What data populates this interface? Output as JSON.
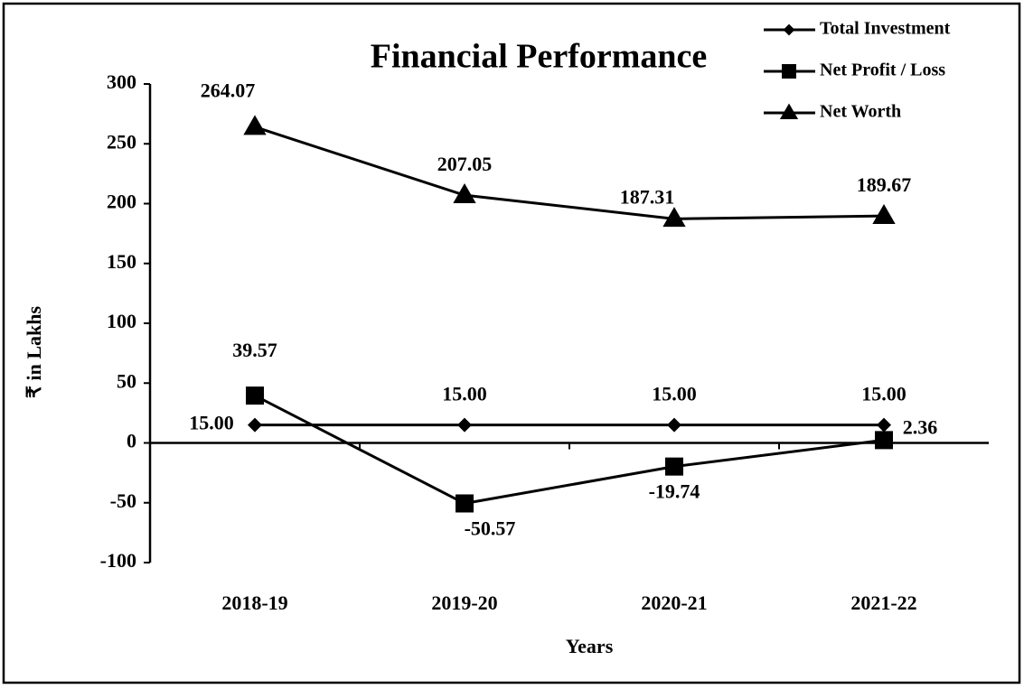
{
  "chart_data": {
    "type": "line",
    "title": "Financial Performance",
    "xlabel": "Years",
    "ylabel": "₹ in Lakhs",
    "categories": [
      "2018-19",
      "2019-20",
      "2020-21",
      "2021-22"
    ],
    "series": [
      {
        "name": "Total Investment",
        "color": "#000000",
        "marker": "diamond",
        "values": [
          15,
          15,
          15,
          15
        ],
        "value_labels": [
          "15.00",
          "15.00",
          "15.00",
          "15.00"
        ]
      },
      {
        "name": "Net Profit / Loss",
        "color": "#000000",
        "marker": "square",
        "values": [
          39.57,
          -50.57,
          -19.74,
          2.36
        ]
      },
      {
        "name": "Net Worth",
        "color": "#000000",
        "marker": "triangle",
        "values": [
          264.07,
          207.05,
          187.31,
          189.67
        ]
      }
    ],
    "ylim": [
      -100,
      300
    ],
    "yticks": [
      -100,
      -50,
      0,
      50,
      100,
      150,
      200,
      250,
      300
    ],
    "grid": false,
    "legend": "upper right"
  }
}
